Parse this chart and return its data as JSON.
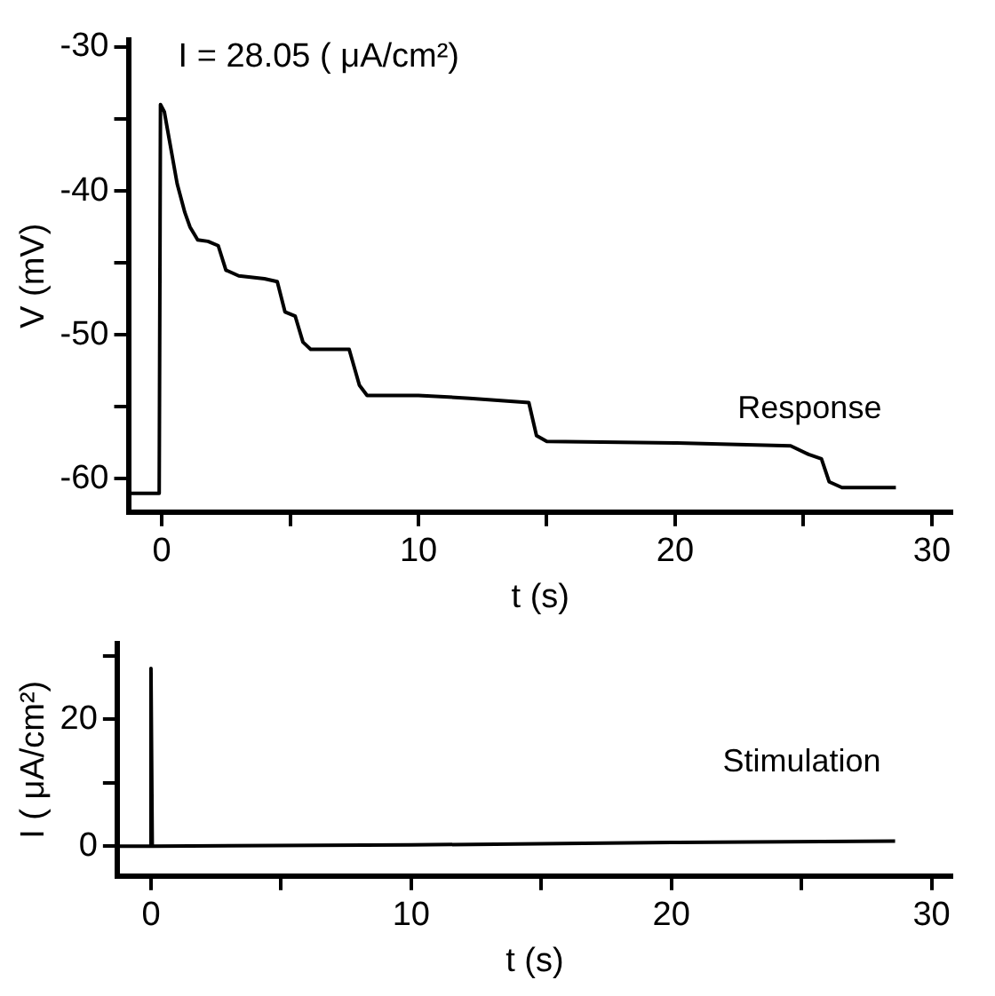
{
  "chart_data": [
    {
      "type": "line",
      "annotations": [
        "I = 28.05 ( μA/cm²)"
      ],
      "xlabel": "t (s)",
      "ylabel": "V (mV)",
      "xlim": [
        -1.3,
        30.8
      ],
      "ylim": [
        -62.3,
        -29.5
      ],
      "xticks": [
        0,
        {
          "value": 5,
          "label": null
        },
        10,
        {
          "value": 15,
          "label": null
        },
        20,
        {
          "value": 25,
          "label": null
        },
        30
      ],
      "yticks": [
        -30,
        {
          "value": -35,
          "label": null
        },
        -40,
        {
          "value": -45,
          "label": null
        },
        -50,
        {
          "value": -55,
          "label": null
        },
        -60
      ],
      "grid": false,
      "legend": false,
      "marker": "none",
      "line_style": "solid",
      "series": [
        {
          "name": "Response",
          "color": "#000000",
          "x": [
            -1.2,
            -0.1,
            -0.05,
            0.1,
            0.3,
            0.6,
            0.9,
            1.1,
            1.4,
            1.8,
            2.2,
            2.5,
            3.0,
            4.0,
            4.5,
            4.8,
            5.2,
            5.5,
            5.8,
            7.3,
            7.7,
            8.0,
            10,
            12,
            14.3,
            14.6,
            15.0,
            20,
            24.5,
            25.2,
            25.7,
            26.0,
            26.5,
            28.6
          ],
          "values": [
            -61.0,
            -61.0,
            -34.0,
            -34.5,
            -36.5,
            -39.5,
            -41.5,
            -42.5,
            -43.4,
            -43.5,
            -43.8,
            -45.5,
            -45.9,
            -46.1,
            -46.3,
            -48.4,
            -48.7,
            -50.5,
            -51.0,
            -51.0,
            -53.5,
            -54.2,
            -54.2,
            -54.4,
            -54.7,
            -57.0,
            -57.4,
            -57.5,
            -57.7,
            -58.3,
            -58.6,
            -60.2,
            -60.6,
            -60.6
          ]
        }
      ]
    },
    {
      "type": "line",
      "xlabel": "t (s)",
      "ylabel": "I ( μA/cm²)",
      "xlim": [
        -1.3,
        30.8
      ],
      "ylim": [
        -4.7,
        32
      ],
      "xticks": [
        0,
        {
          "value": 5,
          "label": null
        },
        10,
        {
          "value": 15,
          "label": null
        },
        20,
        {
          "value": 25,
          "label": null
        },
        30
      ],
      "yticks": [
        0,
        {
          "value": 10,
          "label": null
        },
        20,
        {
          "value": 30,
          "label": null
        }
      ],
      "grid": false,
      "legend": false,
      "marker": "none",
      "line_style": "solid",
      "series": [
        {
          "name": "Stimulation",
          "color": "#000000",
          "x": [
            -1.2,
            0,
            0,
            0.05,
            10,
            20,
            28.6
          ],
          "values": [
            0,
            0,
            28.05,
            0,
            0.2,
            0.6,
            0.8
          ]
        }
      ]
    }
  ]
}
